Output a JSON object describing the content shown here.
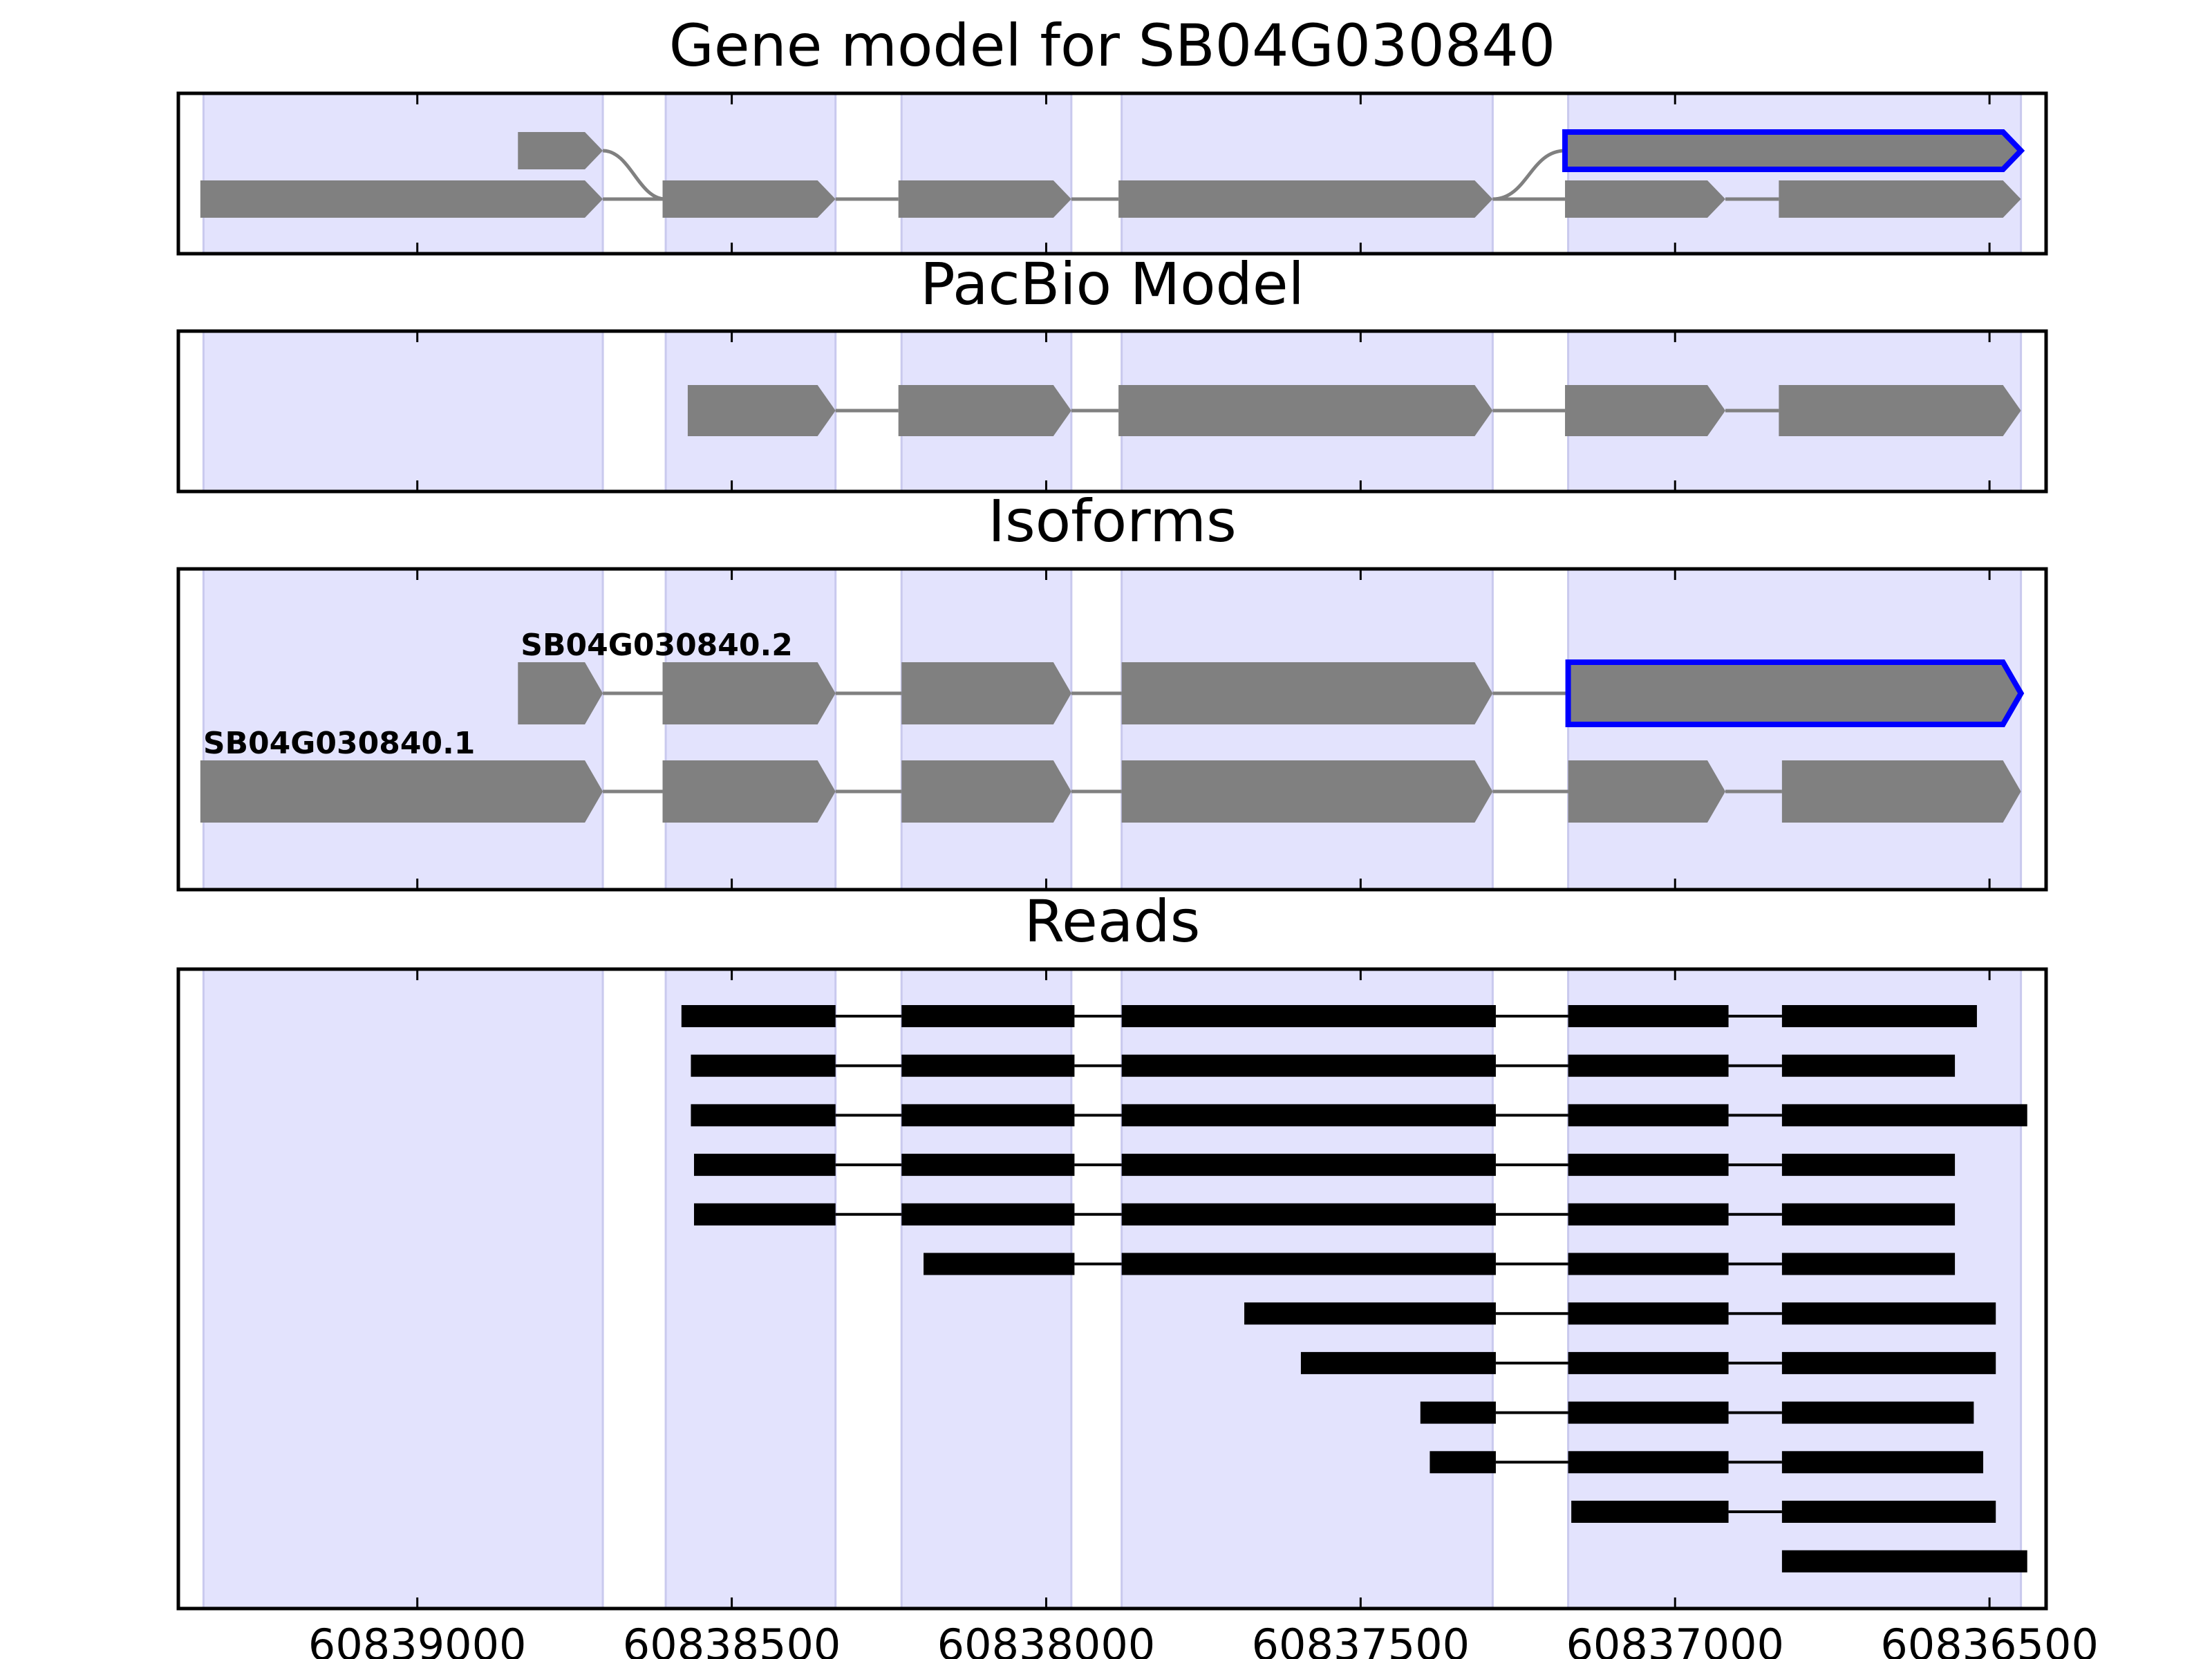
{
  "chart_data": {
    "type": "gene-structure",
    "genomic_axis": {
      "xlim": [
        60839380,
        60836410
      ],
      "direction": "decreasing",
      "ticks": [
        60839000,
        60838500,
        60838000,
        60837500,
        60837000,
        60836500
      ],
      "tick_labels": [
        "60839000",
        "60838500",
        "60838000",
        "60837500",
        "60837000",
        "60836500"
      ]
    },
    "exon_regions": [
      [
        60839340,
        60838705
      ],
      [
        60838605,
        60838335
      ],
      [
        60838230,
        60837960
      ],
      [
        60837880,
        60837290
      ],
      [
        60837170,
        60836450
      ]
    ],
    "colors": {
      "exon_shading": "#e3e3fd",
      "exon_shading_edge": "#c9c9ee",
      "feature_fill": "#808080",
      "intron_line": "#808080",
      "highlight_edge": "#0000ff",
      "read_fill": "#000000"
    },
    "panels": [
      {
        "id": "gene-model",
        "title": "Gene model for SB04G030840",
        "tracks": [
          {
            "exons": [
              [
                60838840,
                60838705
              ]
            ],
            "connect_curve_to": [
              60838610,
              60838605
            ]
          },
          {
            "exons": [
              [
                60839345,
                60838705
              ],
              [
                60838610,
                60838335
              ],
              [
                60838235,
                60837960
              ],
              [
                60837885,
                60837290
              ],
              [
                60837175,
                60836920
              ],
              [
                60836835,
                60836450
              ]
            ]
          },
          {
            "exons": [
              [
                60837175,
                60836450
              ]
            ],
            "highlighted": true,
            "connect_curve_from": [
              60837290,
              60837175
            ]
          }
        ]
      },
      {
        "id": "pacbio-model",
        "title": "PacBio Model",
        "tracks": [
          {
            "exons": [
              [
                60838570,
                60838335
              ],
              [
                60838235,
                60837960
              ],
              [
                60837885,
                60837290
              ],
              [
                60837175,
                60836920
              ],
              [
                60836835,
                60836450
              ]
            ]
          }
        ]
      },
      {
        "id": "isoforms",
        "title": "Isoforms",
        "tracks": [
          {
            "label": "SB04G030840.1",
            "exons": [
              [
                60839345,
                60838705
              ],
              [
                60838610,
                60838335
              ],
              [
                60838230,
                60837960
              ],
              [
                60837880,
                60837290
              ],
              [
                60837170,
                60836920
              ],
              [
                60836830,
                60836450
              ]
            ]
          },
          {
            "label": "SB04G030840.2",
            "exons": [
              [
                60838840,
                60838705
              ],
              [
                60838610,
                60838335
              ],
              [
                60838230,
                60837960
              ],
              [
                60837880,
                60837290
              ],
              [
                60837170,
                60836450
              ]
            ],
            "highlighted_exon_index": 4
          }
        ]
      },
      {
        "id": "reads",
        "title": "Reads",
        "reads": [
          [
            [
              60838580,
              60838335
            ],
            [
              60838230,
              60837955
            ],
            [
              60837880,
              60837285
            ],
            [
              60837170,
              60836915
            ],
            [
              60836830,
              60836520
            ]
          ],
          [
            [
              60838565,
              60838335
            ],
            [
              60838230,
              60837955
            ],
            [
              60837880,
              60837285
            ],
            [
              60837170,
              60836915
            ],
            [
              60836830,
              60836555
            ]
          ],
          [
            [
              60838565,
              60838335
            ],
            [
              60838230,
              60837955
            ],
            [
              60837880,
              60837285
            ],
            [
              60837170,
              60836915
            ],
            [
              60836830,
              60836440
            ]
          ],
          [
            [
              60838560,
              60838335
            ],
            [
              60838230,
              60837955
            ],
            [
              60837880,
              60837285
            ],
            [
              60837170,
              60836915
            ],
            [
              60836830,
              60836555
            ]
          ],
          [
            [
              60838560,
              60838335
            ],
            [
              60838230,
              60837955
            ],
            [
              60837880,
              60837285
            ],
            [
              60837170,
              60836915
            ],
            [
              60836830,
              60836555
            ]
          ],
          [
            [
              60838195,
              60837955
            ],
            [
              60837880,
              60837285
            ],
            [
              60837170,
              60836915
            ],
            [
              60836830,
              60836555
            ]
          ],
          [
            [
              60837685,
              60837285
            ],
            [
              60837170,
              60836915
            ],
            [
              60836830,
              60836490
            ]
          ],
          [
            [
              60837595,
              60837285
            ],
            [
              60837170,
              60836915
            ],
            [
              60836830,
              60836490
            ]
          ],
          [
            [
              60837405,
              60837285
            ],
            [
              60837170,
              60836915
            ],
            [
              60836830,
              60836525
            ]
          ],
          [
            [
              60837390,
              60837285
            ],
            [
              60837170,
              60836915
            ],
            [
              60836830,
              60836510
            ]
          ],
          [
            [
              60837165,
              60836915
            ],
            [
              60836830,
              60836490
            ]
          ],
          [
            [
              60836830,
              60836440
            ]
          ]
        ]
      }
    ]
  }
}
